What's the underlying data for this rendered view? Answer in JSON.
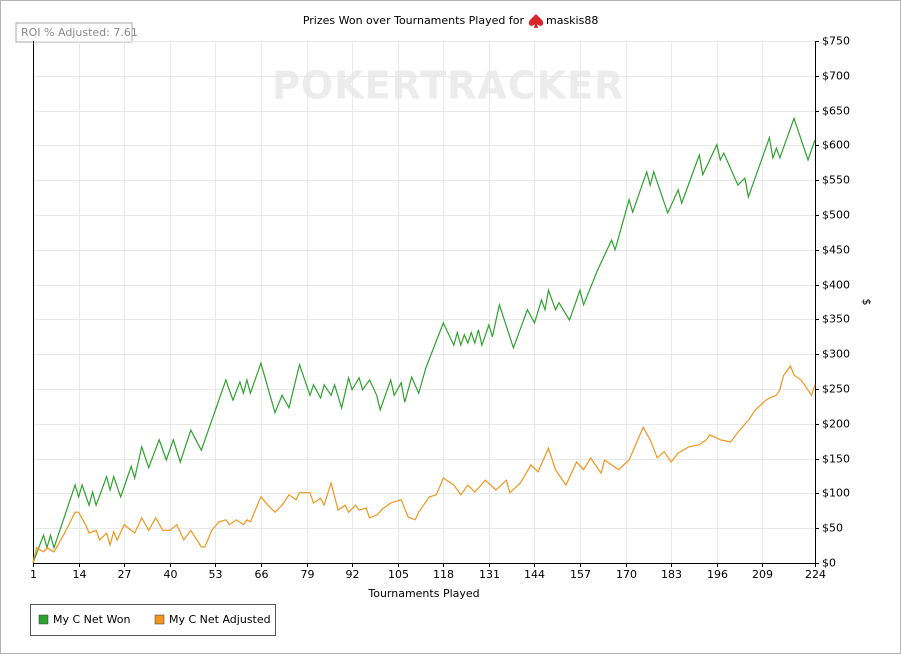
{
  "chart_data": {
    "type": "line",
    "title": "Prizes Won over Tournaments Played for",
    "player": "maskis88",
    "annotation": "ROI % Adjusted: 7.61",
    "watermark": "POKERTRACKER",
    "xlabel": "Tournaments Played",
    "ylabel": "$",
    "xlim": [
      1,
      224
    ],
    "xticks": [
      1,
      14,
      27,
      40,
      53,
      66,
      79,
      92,
      105,
      118,
      131,
      144,
      157,
      170,
      183,
      196,
      209,
      224
    ],
    "ylim": [
      0,
      750
    ],
    "yticks": [
      {
        "value": 0,
        "label": "$0"
      },
      {
        "value": 50,
        "label": "$50"
      },
      {
        "value": 100,
        "label": "$100"
      },
      {
        "value": 150,
        "label": "$150"
      },
      {
        "value": 200,
        "label": "$200"
      },
      {
        "value": 250,
        "label": "$250"
      },
      {
        "value": 300,
        "label": "$300"
      },
      {
        "value": 350,
        "label": "$350"
      },
      {
        "value": 400,
        "label": "$400"
      },
      {
        "value": 450,
        "label": "$450"
      },
      {
        "value": 500,
        "label": "$500"
      },
      {
        "value": 550,
        "label": "$550"
      },
      {
        "value": 600,
        "label": "$600"
      },
      {
        "value": 650,
        "label": "$650"
      },
      {
        "value": 700,
        "label": "$700"
      },
      {
        "value": 750,
        "label": "$750"
      }
    ],
    "y_axis_side": "right",
    "grid": true,
    "legend": "bottom-left",
    "series": [
      {
        "name": "My C Net Won",
        "color": "#2ea22e",
        "x": [
          1,
          4,
          5,
          6,
          7,
          13,
          14,
          15,
          17,
          18,
          19,
          22,
          23,
          24,
          26,
          29,
          30,
          32,
          34,
          37,
          39,
          41,
          43,
          46,
          49,
          56,
          58,
          60,
          61,
          62,
          63,
          66,
          70,
          72,
          74,
          77,
          80,
          81,
          83,
          84,
          86,
          87,
          89,
          91,
          92,
          94,
          95,
          97,
          99,
          100,
          103,
          104,
          106,
          107,
          109,
          111,
          113,
          118,
          121,
          122,
          123,
          124,
          125,
          126,
          127,
          128,
          129,
          131,
          132,
          134,
          138,
          142,
          144,
          146,
          147,
          148,
          150,
          151,
          154,
          157,
          158,
          162,
          166,
          167,
          171,
          172,
          176,
          177,
          178,
          182,
          185,
          186,
          191,
          192,
          196,
          197,
          198,
          202,
          204,
          205,
          211,
          212,
          213,
          214,
          218,
          222,
          224
        ],
        "values": [
          0,
          40,
          22,
          40,
          22,
          112,
          95,
          112,
          83,
          102,
          83,
          124,
          105,
          124,
          95,
          139,
          122,
          167,
          137,
          177,
          148,
          177,
          145,
          191,
          162,
          263,
          234,
          260,
          244,
          263,
          244,
          287,
          216,
          241,
          223,
          285,
          241,
          256,
          237,
          256,
          241,
          256,
          223,
          266,
          249,
          266,
          249,
          263,
          241,
          220,
          263,
          241,
          259,
          231,
          267,
          244,
          280,
          345,
          313,
          331,
          313,
          328,
          316,
          331,
          316,
          335,
          313,
          342,
          325,
          371,
          309,
          364,
          345,
          378,
          364,
          392,
          364,
          374,
          349,
          392,
          371,
          421,
          464,
          450,
          522,
          504,
          562,
          543,
          562,
          503,
          536,
          517,
          586,
          558,
          601,
          579,
          589,
          543,
          553,
          526,
          611,
          582,
          596,
          582,
          639,
          579,
          608
        ]
      },
      {
        "name": "My C Net Adjusted",
        "color": "#f0961e",
        "x": [
          1,
          2,
          4,
          5,
          7,
          10,
          13,
          14,
          16,
          17,
          19,
          20,
          22,
          23,
          24,
          25,
          27,
          30,
          32,
          34,
          36,
          38,
          40,
          42,
          44,
          46,
          49,
          50,
          52,
          54,
          56,
          57,
          59,
          61,
          62,
          63,
          66,
          68,
          70,
          72,
          74,
          76,
          77,
          80,
          81,
          83,
          84,
          86,
          88,
          90,
          91,
          93,
          94,
          96,
          97,
          99,
          101,
          103,
          106,
          108,
          110,
          111,
          114,
          116,
          118,
          121,
          123,
          125,
          127,
          130,
          133,
          136,
          137,
          140,
          143,
          145,
          148,
          150,
          153,
          156,
          158,
          160,
          163,
          164,
          166,
          168,
          171,
          175,
          177,
          179,
          181,
          183,
          185,
          188,
          191,
          193,
          194,
          197,
          200,
          202,
          205,
          207,
          210,
          211,
          213,
          214,
          215,
          217,
          218,
          220,
          221,
          223,
          224
        ],
        "values": [
          0,
          22,
          16,
          22,
          16,
          43,
          73,
          73,
          55,
          43,
          47,
          33,
          43,
          26,
          45,
          33,
          55,
          43,
          65,
          47,
          65,
          47,
          47,
          55,
          33,
          47,
          23,
          23,
          47,
          59,
          62,
          55,
          62,
          55,
          62,
          59,
          95,
          83,
          73,
          83,
          98,
          91,
          101,
          101,
          86,
          93,
          83,
          115,
          76,
          83,
          73,
          83,
          76,
          79,
          65,
          69,
          79,
          86,
          91,
          66,
          62,
          73,
          95,
          98,
          122,
          112,
          98,
          112,
          102,
          119,
          105,
          119,
          101,
          115,
          141,
          131,
          165,
          134,
          112,
          145,
          134,
          151,
          129,
          148,
          141,
          134,
          148,
          195,
          177,
          151,
          160,
          145,
          158,
          167,
          170,
          177,
          184,
          177,
          174,
          188,
          205,
          220,
          234,
          237,
          241,
          249,
          269,
          283,
          270,
          263,
          256,
          241,
          256
        ]
      }
    ]
  }
}
